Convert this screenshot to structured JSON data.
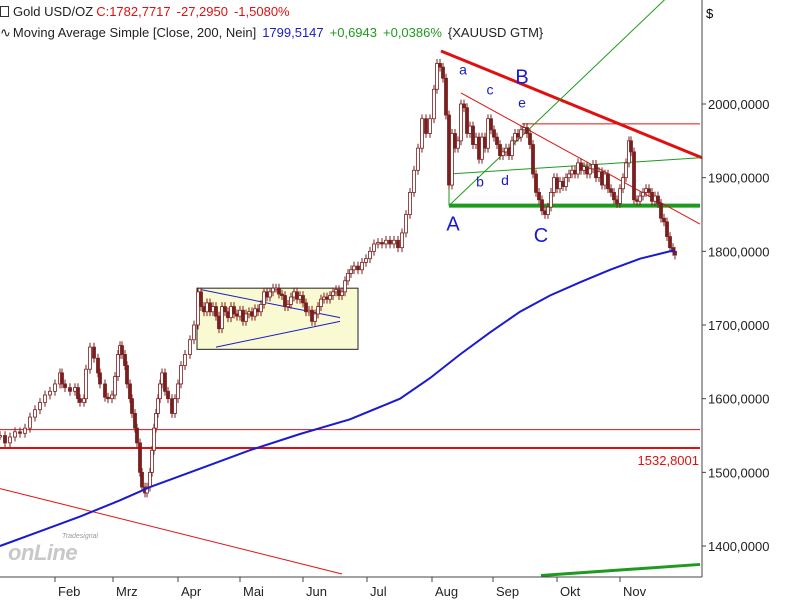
{
  "header": {
    "line1_symbol": "Gold USD/OZ",
    "line1_close": "C:1782,7717",
    "line1_change": "-27,2950",
    "line1_pct": "-1,5080%",
    "line2_indicator": "Moving Average Simple [Close, 200, Nein]",
    "line2_value": "1799,5147",
    "line2_change": "+0,6943",
    "line2_pct": "+0,0386%",
    "line2_source": "{XAUUSD GTM}",
    "currency_symbol": "$"
  },
  "colors": {
    "candle_outline": "#7a1f1f",
    "ma_line": "#1a1ad0",
    "red_line": "#e01010",
    "green_line": "#1e9a1e",
    "blue_text": "#1a1ad0",
    "zone_fill": "#fafad2"
  },
  "chart_data": {
    "type": "line",
    "title": "Gold USD/OZ",
    "x_tick_labels": [
      "Feb",
      "Mrz",
      "Apr",
      "Mai",
      "Jun",
      "Jul",
      "Aug",
      "Sep",
      "Okt",
      "Nov"
    ],
    "y_tick_labels": [
      "1400,0000",
      "1500,0000",
      "1600,0000",
      "1700,0000",
      "1800,0000",
      "1900,0000",
      "2000,0000"
    ],
    "ylim": [
      1368,
      2115
    ],
    "grid": false,
    "price_series": {
      "name": "Gold USD/OZ",
      "points": [
        [
          0,
          1550
        ],
        [
          5,
          1540
        ],
        [
          10,
          1548
        ],
        [
          15,
          1555
        ],
        [
          20,
          1553
        ],
        [
          25,
          1560
        ],
        [
          30,
          1575
        ],
        [
          35,
          1585
        ],
        [
          40,
          1595
        ],
        [
          45,
          1605
        ],
        [
          50,
          1610
        ],
        [
          55,
          1620
        ],
        [
          60,
          1635
        ],
        [
          62,
          1620
        ],
        [
          65,
          1615
        ],
        [
          70,
          1610
        ],
        [
          75,
          1615
        ],
        [
          78,
          1600
        ],
        [
          80,
          1595
        ],
        [
          84,
          1600
        ],
        [
          86,
          1640
        ],
        [
          90,
          1670
        ],
        [
          94,
          1655
        ],
        [
          98,
          1635
        ],
        [
          100,
          1620
        ],
        [
          105,
          1602
        ],
        [
          108,
          1600
        ],
        [
          112,
          1605
        ],
        [
          115,
          1630
        ],
        [
          118,
          1660
        ],
        [
          120,
          1672
        ],
        [
          122,
          1660
        ],
        [
          125,
          1645
        ],
        [
          127,
          1620
        ],
        [
          130,
          1600
        ],
        [
          132,
          1580
        ],
        [
          135,
          1560
        ],
        [
          137,
          1540
        ],
        [
          140,
          1500
        ],
        [
          142,
          1480
        ],
        [
          145,
          1472
        ],
        [
          147,
          1480
        ],
        [
          150,
          1500
        ],
        [
          152,
          1530
        ],
        [
          154,
          1560
        ],
        [
          156,
          1580
        ],
        [
          158,
          1600
        ],
        [
          160,
          1620
        ],
        [
          162,
          1635
        ],
        [
          165,
          1610
        ],
        [
          168,
          1600
        ],
        [
          172,
          1580
        ],
        [
          175,
          1600
        ],
        [
          178,
          1620
        ],
        [
          181,
          1645
        ],
        [
          185,
          1660
        ],
        [
          190,
          1680
        ],
        [
          194,
          1700
        ],
        [
          198,
          1745
        ],
        [
          201,
          1725
        ],
        [
          204,
          1718
        ],
        [
          207,
          1730
        ],
        [
          210,
          1718
        ],
        [
          213,
          1725
        ],
        [
          216,
          1712
        ],
        [
          219,
          1695
        ],
        [
          222,
          1725
        ],
        [
          225,
          1718
        ],
        [
          228,
          1710
        ],
        [
          231,
          1725
        ],
        [
          234,
          1715
        ],
        [
          237,
          1712
        ],
        [
          240,
          1720
        ],
        [
          243,
          1705
        ],
        [
          246,
          1715
        ],
        [
          249,
          1718
        ],
        [
          252,
          1712
        ],
        [
          255,
          1722
        ],
        [
          258,
          1718
        ],
        [
          261,
          1728
        ],
        [
          264,
          1745
        ],
        [
          267,
          1738
        ],
        [
          270,
          1745
        ],
        [
          273,
          1750
        ],
        [
          276,
          1750
        ],
        [
          279,
          1742
        ],
        [
          282,
          1740
        ],
        [
          285,
          1725
        ],
        [
          288,
          1728
        ],
        [
          291,
          1738
        ],
        [
          294,
          1745
        ],
        [
          297,
          1735
        ],
        [
          300,
          1740
        ],
        [
          303,
          1730
        ],
        [
          306,
          1718
        ],
        [
          309,
          1720
        ],
        [
          312,
          1705
        ],
        [
          315,
          1715
        ],
        [
          318,
          1725
        ],
        [
          321,
          1735
        ],
        [
          324,
          1738
        ],
        [
          327,
          1735
        ],
        [
          330,
          1740
        ],
        [
          333,
          1745
        ],
        [
          336,
          1748
        ],
        [
          339,
          1740
        ],
        [
          342,
          1745
        ],
        [
          345,
          1760
        ],
        [
          348,
          1770
        ],
        [
          351,
          1775
        ],
        [
          354,
          1780
        ],
        [
          358,
          1775
        ],
        [
          362,
          1785
        ],
        [
          366,
          1790
        ],
        [
          370,
          1800
        ],
        [
          374,
          1810
        ],
        [
          378,
          1812
        ],
        [
          382,
          1810
        ],
        [
          386,
          1815
        ],
        [
          390,
          1810
        ],
        [
          394,
          1815
        ],
        [
          398,
          1805
        ],
        [
          402,
          1825
        ],
        [
          406,
          1850
        ],
        [
          410,
          1880
        ],
        [
          414,
          1910
        ],
        [
          418,
          1940
        ],
        [
          422,
          1980
        ],
        [
          426,
          1960
        ],
        [
          430,
          1980
        ],
        [
          434,
          2020
        ],
        [
          437,
          2055
        ],
        [
          440,
          2050
        ],
        [
          443,
          2035
        ],
        [
          446,
          1985
        ],
        [
          449,
          1890
        ],
        [
          452,
          1960
        ],
        [
          455,
          1940
        ],
        [
          458,
          1950
        ],
        [
          461,
          2000
        ],
        [
          464,
          1995
        ],
        [
          467,
          1960
        ],
        [
          470,
          1970
        ],
        [
          473,
          1945
        ],
        [
          476,
          1955
        ],
        [
          479,
          1925
        ],
        [
          482,
          1955
        ],
        [
          485,
          1940
        ],
        [
          488,
          1980
        ],
        [
          491,
          1965
        ],
        [
          494,
          1955
        ],
        [
          497,
          1945
        ],
        [
          500,
          1930
        ],
        [
          503,
          1935
        ],
        [
          506,
          1940
        ],
        [
          509,
          1930
        ],
        [
          512,
          1950
        ],
        [
          515,
          1960
        ],
        [
          518,
          1955
        ],
        [
          521,
          1965
        ],
        [
          524,
          1968
        ],
        [
          527,
          1960
        ],
        [
          530,
          1945
        ],
        [
          533,
          1905
        ],
        [
          536,
          1880
        ],
        [
          539,
          1870
        ],
        [
          542,
          1855
        ],
        [
          545,
          1850
        ],
        [
          548,
          1860
        ],
        [
          551,
          1880
        ],
        [
          554,
          1900
        ],
        [
          557,
          1885
        ],
        [
          560,
          1895
        ],
        [
          563,
          1888
        ],
        [
          566,
          1900
        ],
        [
          569,
          1905
        ],
        [
          572,
          1910
        ],
        [
          575,
          1905
        ],
        [
          578,
          1920
        ],
        [
          581,
          1910
        ],
        [
          584,
          1915
        ],
        [
          587,
          1905
        ],
        [
          590,
          1912
        ],
        [
          593,
          1918
        ],
        [
          596,
          1900
        ],
        [
          599,
          1908
        ],
        [
          602,
          1890
        ],
        [
          605,
          1905
        ],
        [
          608,
          1885
        ],
        [
          611,
          1880
        ],
        [
          614,
          1870
        ],
        [
          617,
          1865
        ],
        [
          620,
          1885
        ],
        [
          623,
          1900
        ],
        [
          626,
          1920
        ],
        [
          629,
          1950
        ],
        [
          631,
          1935
        ],
        [
          634,
          1870
        ],
        [
          637,
          1868
        ],
        [
          640,
          1875
        ],
        [
          643,
          1880
        ],
        [
          646,
          1885
        ],
        [
          649,
          1880
        ],
        [
          652,
          1868
        ],
        [
          655,
          1875
        ],
        [
          658,
          1865
        ],
        [
          661,
          1845
        ],
        [
          664,
          1840
        ],
        [
          667,
          1820
        ],
        [
          670,
          1805
        ],
        [
          673,
          1800
        ],
        [
          675,
          1795
        ]
      ]
    },
    "ma_series": {
      "name": "Moving Average Simple [Close, 200, Nein]",
      "points": [
        [
          0,
          1400
        ],
        [
          40,
          1420
        ],
        [
          80,
          1440
        ],
        [
          120,
          1462
        ],
        [
          150,
          1480
        ],
        [
          200,
          1505
        ],
        [
          250,
          1530
        ],
        [
          300,
          1552
        ],
        [
          350,
          1572
        ],
        [
          400,
          1600
        ],
        [
          430,
          1628
        ],
        [
          460,
          1660
        ],
        [
          490,
          1690
        ],
        [
          520,
          1718
        ],
        [
          550,
          1740
        ],
        [
          580,
          1758
        ],
        [
          610,
          1775
        ],
        [
          640,
          1790
        ],
        [
          670,
          1800
        ],
        [
          675,
          1800
        ]
      ]
    },
    "horizontal_lines": [
      {
        "y": 1558,
        "x1": 0,
        "x2": 700,
        "color": "red_line",
        "width": 1
      },
      {
        "y": 1533,
        "x1": 0,
        "x2": 700,
        "color": "red_line",
        "width": 2
      },
      {
        "y": 1973,
        "x1": 522,
        "x2": 700,
        "color": "red_line",
        "width": 1
      },
      {
        "y": 1862,
        "x1": 449,
        "x2": 700,
        "color": "green_line",
        "width": 4
      }
    ],
    "trend_lines": [
      {
        "p1": [
          441,
          2072
        ],
        "p2": [
          702,
          1927
        ],
        "color": "red_line",
        "width": 3
      },
      {
        "p1": [
          461,
          2015
        ],
        "p2": [
          700,
          1837
        ],
        "color": "red_line",
        "width": 1
      },
      {
        "p1": [
          0,
          1478
        ],
        "p2": [
          342,
          1362
        ],
        "color": "red_line",
        "width": 1
      },
      {
        "p1": [
          449,
          1862
        ],
        "p2": [
          702,
          2190
        ],
        "color": "green_line",
        "width": 1
      },
      {
        "p1": [
          449,
          1905
        ],
        "p2": [
          700,
          1927
        ],
        "color": "green_line",
        "width": 1
      },
      {
        "p1": [
          541,
          1360
        ],
        "p2": [
          700,
          1375
        ],
        "color": "green_line",
        "width": 3
      },
      {
        "p1": [
          201,
          1748
        ],
        "p2": [
          340,
          1710
        ],
        "color": "blue_text",
        "width": 1
      },
      {
        "p1": [
          216,
          1670
        ],
        "p2": [
          340,
          1705
        ],
        "color": "blue_text",
        "width": 1
      },
      {
        "p1": [
          449,
          1905
        ],
        "p2": [
          449,
          1862
        ],
        "color": "green_line",
        "width": 1
      }
    ],
    "annotations": [
      {
        "text": "a",
        "x": 463,
        "price": 2040,
        "size": 14
      },
      {
        "text": "B",
        "x": 522,
        "price": 2028,
        "size": 20
      },
      {
        "text": "c",
        "x": 490,
        "price": 2013,
        "size": 14
      },
      {
        "text": "e",
        "x": 522,
        "price": 1995,
        "size": 14
      },
      {
        "text": "b",
        "x": 480,
        "price": 1888,
        "size": 14
      },
      {
        "text": "d",
        "x": 505,
        "price": 1890,
        "size": 14
      },
      {
        "text": "A",
        "x": 453,
        "price": 1828,
        "size": 20
      },
      {
        "text": "C",
        "x": 541,
        "price": 1813,
        "size": 20
      }
    ],
    "zone_box": {
      "x1": 197,
      "x2": 358,
      "top": 1750,
      "bottom": 1667
    },
    "price_label": "1532,8001"
  },
  "watermark": {
    "line1": "Tradesignal",
    "line2": "onLine"
  }
}
